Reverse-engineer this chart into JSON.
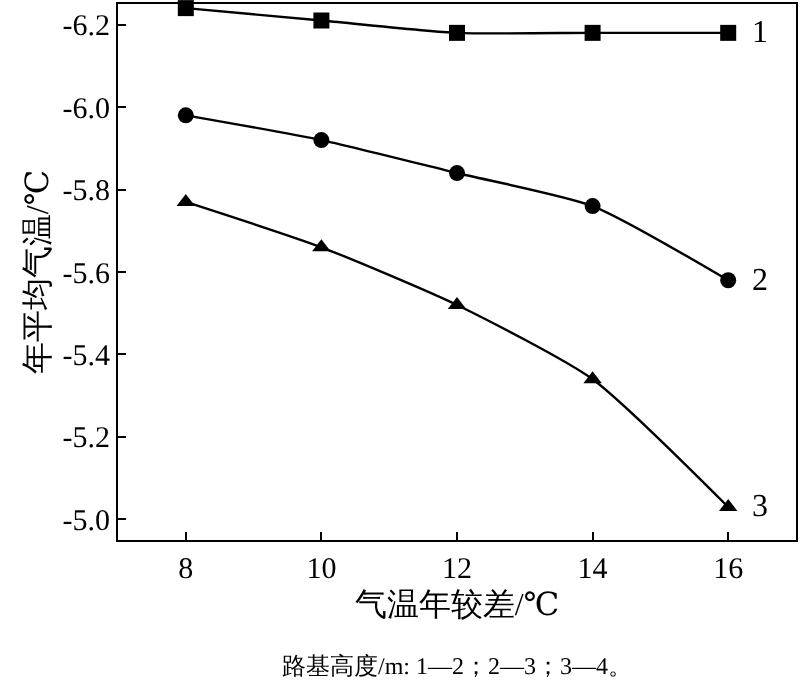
{
  "chart_data": {
    "type": "line",
    "xlabel": "气温年较差/℃",
    "ylabel": "年平均气温/℃",
    "x": [
      8,
      10,
      12,
      14,
      16
    ],
    "series": [
      {
        "name": "1",
        "color": "#000000",
        "marker": "square",
        "values": [
          -6.24,
          -6.21,
          -6.18,
          -6.18,
          -6.18
        ]
      },
      {
        "name": "2",
        "color": "#000000",
        "marker": "circle",
        "values": [
          -5.98,
          -5.92,
          -5.84,
          -5.76,
          -5.58
        ]
      },
      {
        "name": "3",
        "color": "#000000",
        "marker": "triangle",
        "values": [
          -5.77,
          -5.66,
          -5.52,
          -5.34,
          -5.03
        ]
      }
    ],
    "xlim": [
      7,
      17
    ],
    "xticks": [
      8,
      10,
      12,
      14,
      16
    ],
    "ylim": [
      -4.95,
      -6.25
    ],
    "yticks": [
      {
        "value": -6.2,
        "label": "-6.2"
      },
      {
        "value": -6,
        "label": "-6.0"
      },
      {
        "value": -5.8,
        "label": "-5.8"
      },
      {
        "value": -5.6,
        "label": "-5.6"
      },
      {
        "value": -5.4,
        "label": "-5.4"
      },
      {
        "value": -5.2,
        "label": "-5.2"
      },
      {
        "value": -5,
        "label": "-5.0"
      }
    ],
    "grid": false,
    "legend": false,
    "line_style": "solid",
    "annotations": [
      "路基高度/m: 1—2；2—3；3—4。"
    ]
  }
}
